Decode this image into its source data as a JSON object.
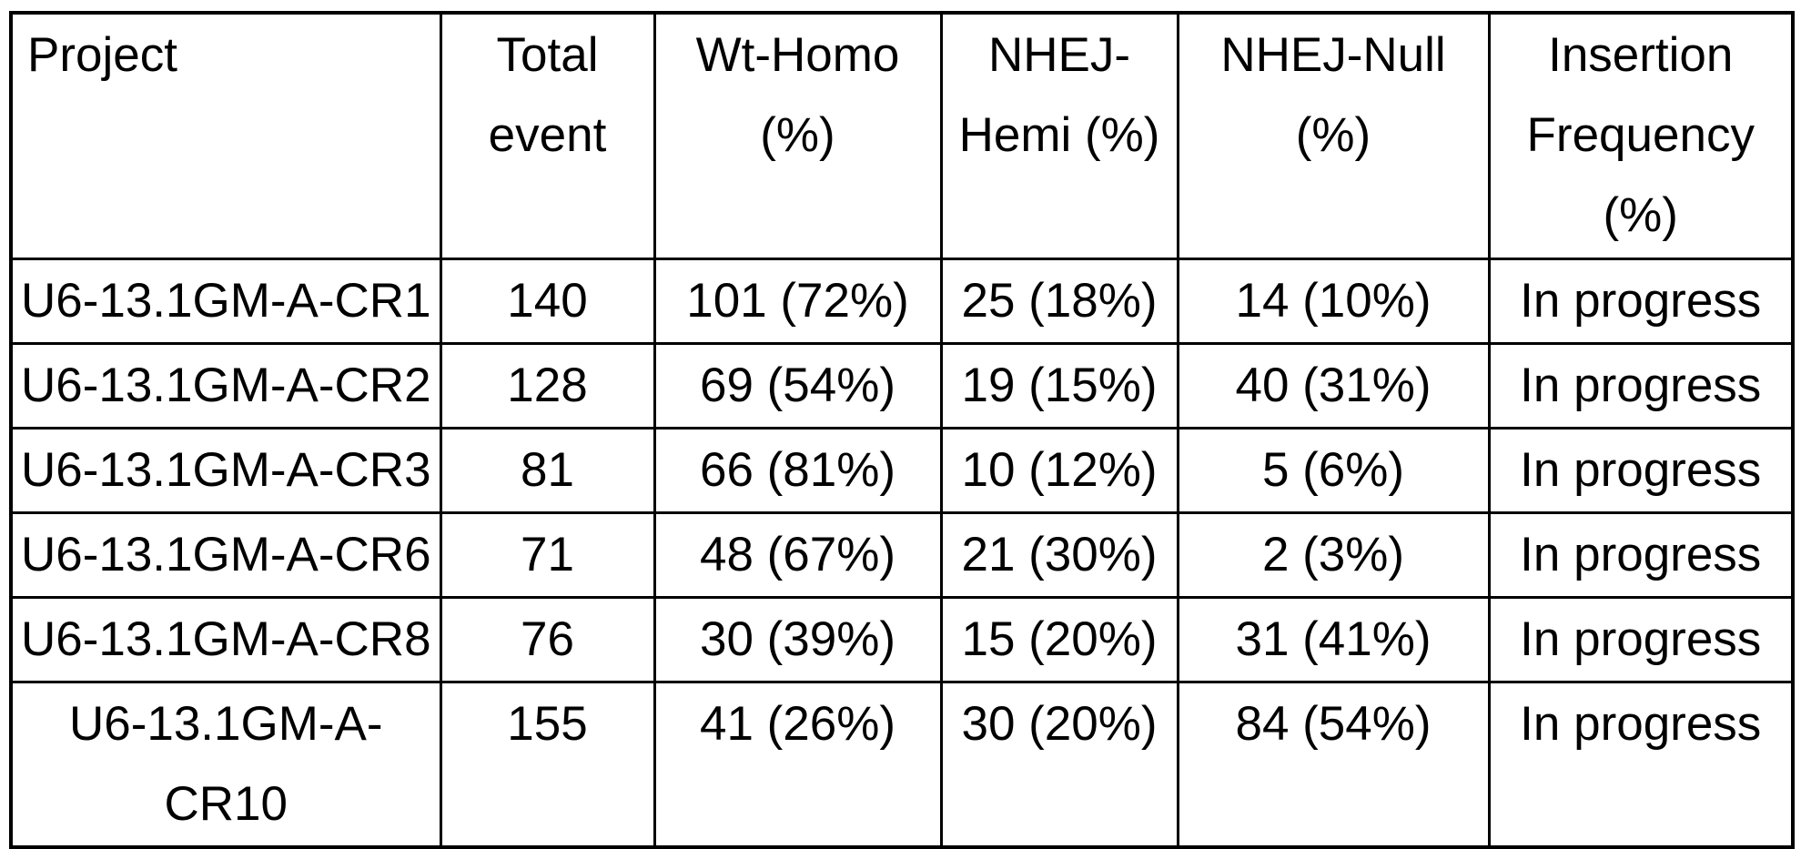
{
  "colors": {
    "background": "#ffffff",
    "border": "#000000",
    "text": "#000000"
  },
  "table": {
    "columns": [
      {
        "key": "project",
        "label": "Project"
      },
      {
        "key": "total-event",
        "label": "Total event"
      },
      {
        "key": "wt-homo",
        "label": "Wt-Homo (%)"
      },
      {
        "key": "nhej-hemi",
        "label": "NHEJ-Hemi (%)"
      },
      {
        "key": "nhej-null",
        "label": "NHEJ-Null (%)"
      },
      {
        "key": "insertion-frequency",
        "label": "Insertion Frequency (%)"
      }
    ],
    "rows": [
      [
        "U6-13.1GM-A-CR1",
        "140",
        "101 (72%)",
        "25 (18%)",
        "14 (10%)",
        "In progress"
      ],
      [
        "U6-13.1GM-A-CR2",
        "128",
        "69 (54%)",
        "19 (15%)",
        "40 (31%)",
        "In progress"
      ],
      [
        "U6-13.1GM-A-CR3",
        "81",
        "66 (81%)",
        "10 (12%)",
        "5 (6%)",
        "In progress"
      ],
      [
        "U6-13.1GM-A-CR6",
        "71",
        "48 (67%)",
        "21 (30%)",
        "2 (3%)",
        "In progress"
      ],
      [
        "U6-13.1GM-A-CR8",
        "76",
        "30 (39%)",
        "15 (20%)",
        "31 (41%)",
        "In progress"
      ],
      [
        "U6-13.1GM-A-CR10",
        "155",
        "41 (26%)",
        "30 (20%)",
        "84 (54%)",
        "In progress"
      ]
    ]
  }
}
